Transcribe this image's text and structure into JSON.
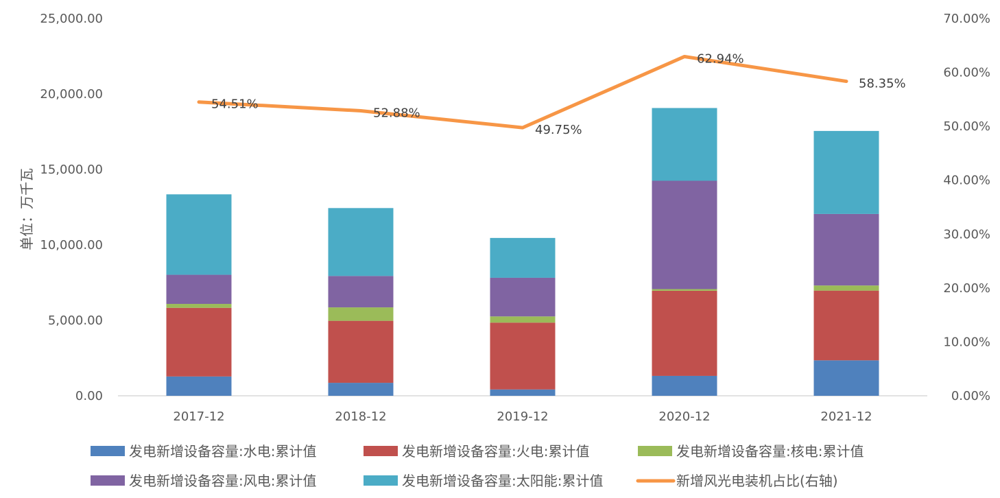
{
  "chart_data": {
    "type": "bar",
    "stacked": true,
    "categories": [
      "2017-12",
      "2018-12",
      "2019-12",
      "2020-12",
      "2021-12"
    ],
    "ylabel": "单位：万千瓦",
    "ylim": [
      0,
      25000
    ],
    "y_ticks": [
      "0.00",
      "5,000.00",
      "10,000.00",
      "15,000.00",
      "20,000.00",
      "25,000.00"
    ],
    "y2lim": [
      0,
      70
    ],
    "y2_ticks": [
      "0.00%",
      "10.00%",
      "20.00%",
      "30.00%",
      "40.00%",
      "50.00%",
      "60.00%",
      "70.00%"
    ],
    "series": [
      {
        "name": "发电新增设备容量:水电:累计值",
        "type": "bar",
        "color": "#4F81BD",
        "values": [
          1280,
          860,
          420,
          1320,
          2350
        ]
      },
      {
        "name": "发电新增设备容量:火电:累计值",
        "type": "bar",
        "color": "#C0504D",
        "values": [
          4550,
          4110,
          4430,
          5640,
          4620
        ]
      },
      {
        "name": "发电新增设备容量:核电:累计值",
        "type": "bar",
        "color": "#9BBB59",
        "values": [
          260,
          890,
          410,
          110,
          340
        ]
      },
      {
        "name": "发电新增设备容量:风电:累计值",
        "type": "bar",
        "color": "#8064A2",
        "values": [
          1930,
          2080,
          2560,
          7180,
          4740
        ]
      },
      {
        "name": "发电新增设备容量:太阳能:累计值",
        "type": "bar",
        "color": "#4BACC6",
        "values": [
          5330,
          4500,
          2640,
          4820,
          5500
        ]
      },
      {
        "name": "新增风光电装机占比(右轴)",
        "type": "line",
        "axis": "right",
        "color": "#F79646",
        "values": [
          54.51,
          52.88,
          49.75,
          62.94,
          58.35
        ],
        "labels": [
          "54.51%",
          "52.88%",
          "49.75%",
          "62.94%",
          "58.35%"
        ]
      }
    ],
    "legend_position": "bottom",
    "grid": false
  }
}
